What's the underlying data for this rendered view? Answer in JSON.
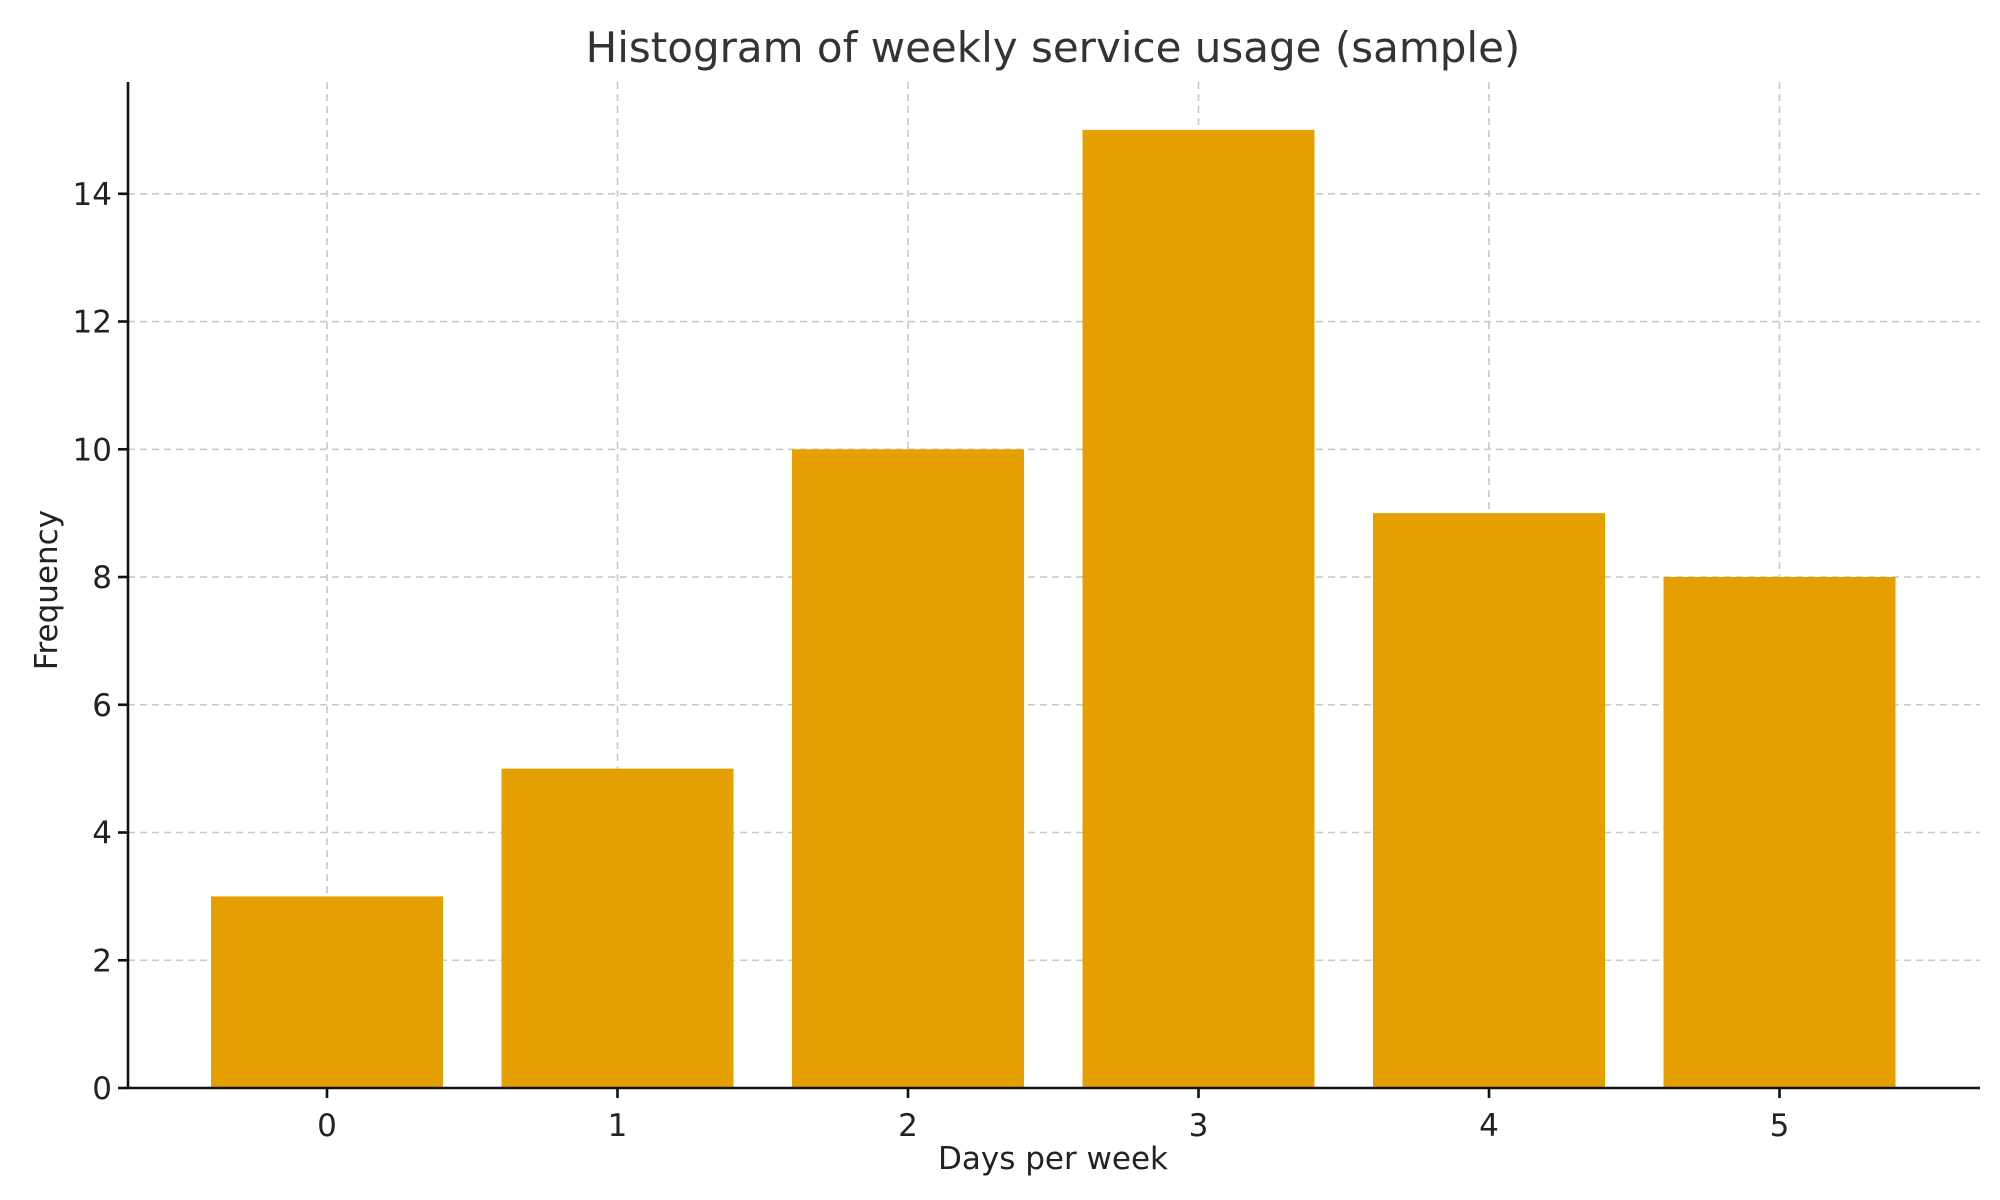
{
  "chart_data": {
    "type": "bar",
    "title": "Histogram of weekly service usage (sample)",
    "xlabel": "Days per week",
    "ylabel": "Frequency",
    "categories": [
      "0",
      "1",
      "2",
      "3",
      "4",
      "5"
    ],
    "values": [
      3,
      5,
      10,
      15,
      9,
      8
    ],
    "ylim": [
      0,
      15.75
    ],
    "yticks": [
      0,
      2,
      4,
      6,
      8,
      10,
      12,
      14
    ],
    "grid": true,
    "colors": {
      "bar": "#e5a000",
      "grid": "#c8c8c8",
      "axis": "#111111"
    }
  }
}
